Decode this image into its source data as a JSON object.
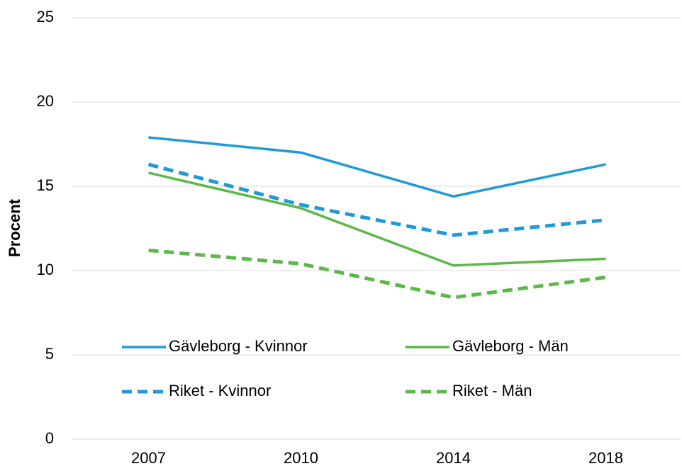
{
  "chart_data": {
    "type": "line",
    "y_label": "Procent",
    "categories": [
      "2007",
      "2010",
      "2014",
      "2018"
    ],
    "series": [
      {
        "name": "Gävleborg - Kvinnor",
        "color": "#1f9ad6",
        "dashed": false,
        "values": [
          17.9,
          17.0,
          14.4,
          16.3
        ]
      },
      {
        "name": "Gävleborg - Män",
        "color": "#5cb848",
        "dashed": false,
        "values": [
          15.8,
          13.7,
          10.3,
          10.7
        ]
      },
      {
        "name": "Riket - Kvinnor",
        "color": "#1f9ad6",
        "dashed": true,
        "values": [
          16.3,
          13.9,
          12.1,
          13.0
        ]
      },
      {
        "name": "Riket - Män",
        "color": "#5cb848",
        "dashed": true,
        "values": [
          11.2,
          10.4,
          8.4,
          9.6
        ]
      }
    ],
    "ylim": [
      0,
      25
    ],
    "yticks": [
      0,
      5,
      10,
      15,
      20,
      25
    ],
    "grid": true,
    "legend": "bottom"
  }
}
